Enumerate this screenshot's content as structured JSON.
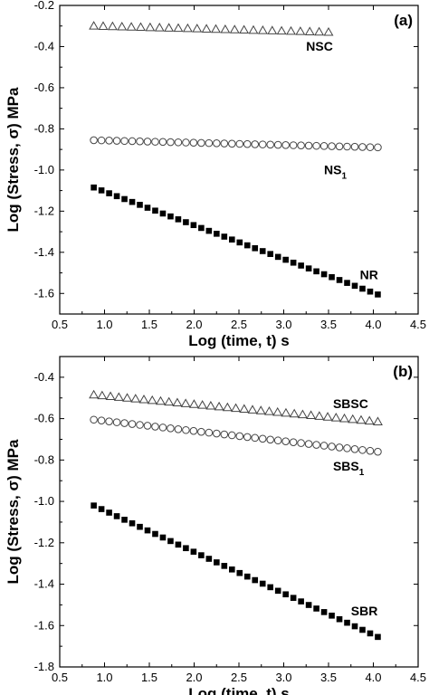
{
  "chart_data": [
    {
      "type": "scatter",
      "panel_label": "(a)",
      "xlabel": "Log (time, t) s",
      "ylabel": "Log (Stress, σ) MPa",
      "xlim": [
        0.5,
        4.5
      ],
      "ylim": [
        -1.7,
        -0.2
      ],
      "xticks": [
        0.5,
        1.0,
        1.5,
        2.0,
        2.5,
        3.0,
        3.5,
        4.0,
        4.5
      ],
      "yticks": [
        -0.2,
        -0.4,
        -0.6,
        -0.8,
        -1.0,
        -1.2,
        -1.4,
        -1.6
      ],
      "xtick_labels": [
        "0.5",
        "1.0",
        "1.5",
        "2.0",
        "2.5",
        "3.0",
        "3.5",
        "4.0",
        "4.5"
      ],
      "ytick_labels": [
        "-0.2",
        "-0.4",
        "-0.6",
        "-0.8",
        "-1.0",
        "-1.2",
        "-1.4",
        "-1.6"
      ],
      "series": [
        {
          "name": "NSC",
          "marker": "triangle-open",
          "x_start": 0.88,
          "x_end": 3.5,
          "n": 26,
          "y_start": -0.3,
          "y_end": -0.33,
          "label_at": [
            3.25,
            -0.42
          ]
        },
        {
          "name": "NS",
          "name_sub": "1",
          "marker": "circle-open",
          "x_start": 0.88,
          "x_end": 4.05,
          "n": 38,
          "y_start": -0.855,
          "y_end": -0.89,
          "label_at": [
            3.45,
            -1.02
          ]
        },
        {
          "name": "NR",
          "marker": "square-filled",
          "x_start": 0.88,
          "x_end": 4.05,
          "n": 38,
          "y_start": -1.085,
          "y_end": -1.605,
          "label_at": [
            3.85,
            -1.53
          ]
        }
      ]
    },
    {
      "type": "scatter",
      "panel_label": "(b)",
      "xlabel": "Log (time, t) s",
      "ylabel": "Log (Stress, σ) MPa",
      "xlim": [
        0.5,
        4.5
      ],
      "ylim": [
        -1.8,
        -0.3
      ],
      "xticks": [
        0.5,
        1.0,
        1.5,
        2.0,
        2.5,
        3.0,
        3.5,
        4.0,
        4.5
      ],
      "yticks": [
        -0.4,
        -0.6,
        -0.8,
        -1.0,
        -1.2,
        -1.4,
        -1.6,
        -1.8
      ],
      "xtick_labels": [
        "0.5",
        "1.0",
        "1.5",
        "2.0",
        "2.5",
        "3.0",
        "3.5",
        "4.0",
        "4.5"
      ],
      "ytick_labels": [
        "-0.4",
        "-0.6",
        "-0.8",
        "-1.0",
        "-1.2",
        "-1.4",
        "-1.6",
        "-1.8"
      ],
      "series": [
        {
          "name": "SBSC",
          "marker": "triangle-open",
          "x_start": 0.88,
          "x_end": 4.05,
          "n": 35,
          "y_start": -0.485,
          "y_end": -0.615,
          "label_at": [
            3.55,
            -0.55
          ]
        },
        {
          "name": "SBS",
          "name_sub": "1",
          "marker": "circle-open",
          "x_start": 0.88,
          "x_end": 4.05,
          "n": 38,
          "y_start": -0.605,
          "y_end": -0.76,
          "label_at": [
            3.55,
            -0.85
          ]
        },
        {
          "name": "SBR",
          "marker": "square-filled",
          "x_start": 0.88,
          "x_end": 4.05,
          "n": 38,
          "y_start": -1.02,
          "y_end": -1.655,
          "label_at": [
            3.75,
            -1.55
          ]
        }
      ]
    }
  ]
}
